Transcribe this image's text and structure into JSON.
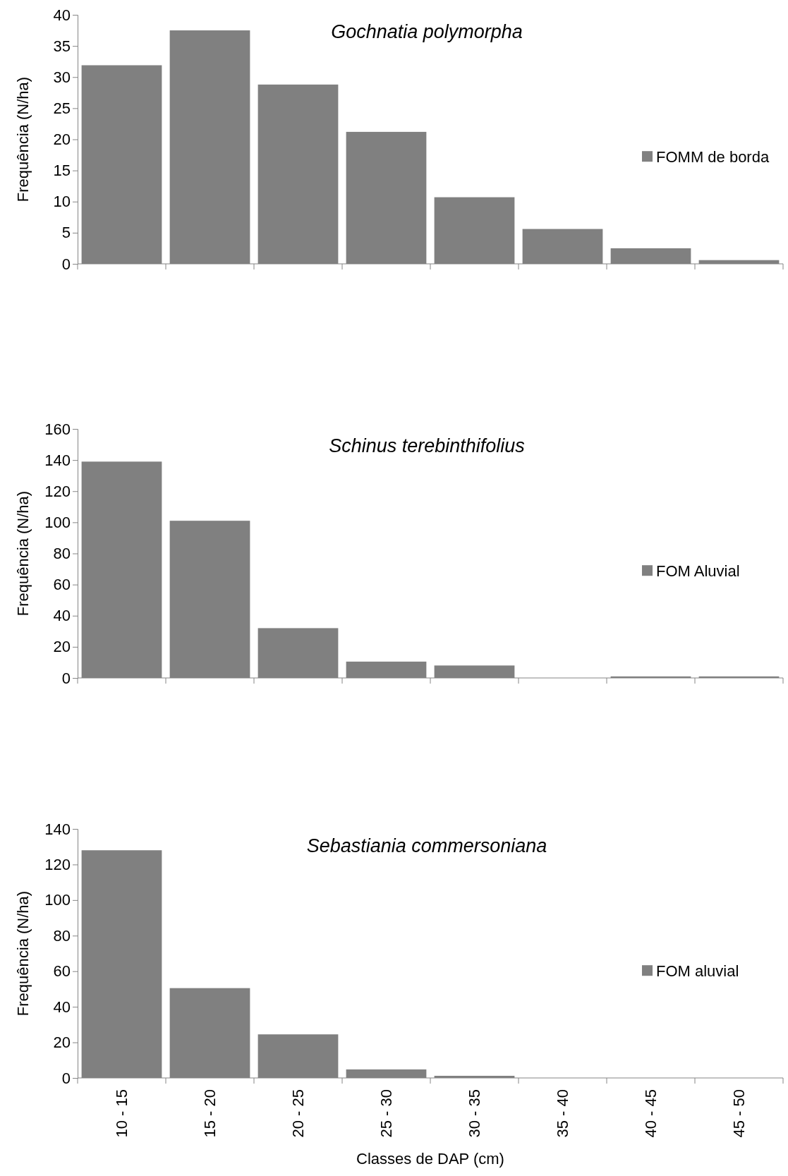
{
  "chart_data": [
    {
      "type": "bar",
      "title": "Gochnatia polymorpha",
      "ylabel": "Frequência (N/ha)",
      "categories": [
        null,
        null,
        null,
        null,
        null,
        null,
        null,
        null
      ],
      "series": [
        {
          "name": "FOMM de borda",
          "color": "#808080",
          "values": [
            31.9,
            37.5,
            28.8,
            21.2,
            10.7,
            5.6,
            2.5,
            0.6
          ]
        }
      ],
      "ylim": [
        0,
        40
      ],
      "yticks": [
        0,
        5,
        10,
        15,
        20,
        25,
        30,
        35,
        40
      ],
      "legend": "right",
      "tick_labels": "y"
    },
    {
      "type": "bar",
      "title": "Schinus terebinthifolius",
      "ylabel": "Frequência (N/ha)",
      "categories": [
        null,
        null,
        null,
        null,
        null,
        null,
        null,
        null
      ],
      "series": [
        {
          "name": "FOM Aluvial",
          "color": "#808080",
          "values": [
            139,
            101,
            32,
            10.5,
            8,
            0,
            1,
            1
          ]
        }
      ],
      "ylim": [
        0,
        160
      ],
      "yticks": [
        0,
        20,
        40,
        60,
        80,
        100,
        120,
        140,
        160
      ],
      "legend": "right",
      "tick_labels": "y"
    },
    {
      "type": "bar",
      "title": "Sebastiania commersoniana",
      "xlabel": "Classes de DAP (cm)",
      "ylabel": "Frequência (N/ha)",
      "categories": [
        "10 - 15",
        "15 - 20",
        "20 - 25",
        "25 - 30",
        "30 - 35",
        "35 - 40",
        "40 - 45",
        "45 - 50"
      ],
      "series": [
        {
          "name": "FOM aluvial",
          "color": "#808080",
          "values": [
            128,
            50.5,
            24.5,
            4.8,
            1.2,
            0,
            0,
            0
          ]
        }
      ],
      "ylim": [
        0,
        140
      ],
      "yticks": [
        0,
        20,
        40,
        60,
        80,
        100,
        120,
        140
      ],
      "legend": "right"
    }
  ]
}
